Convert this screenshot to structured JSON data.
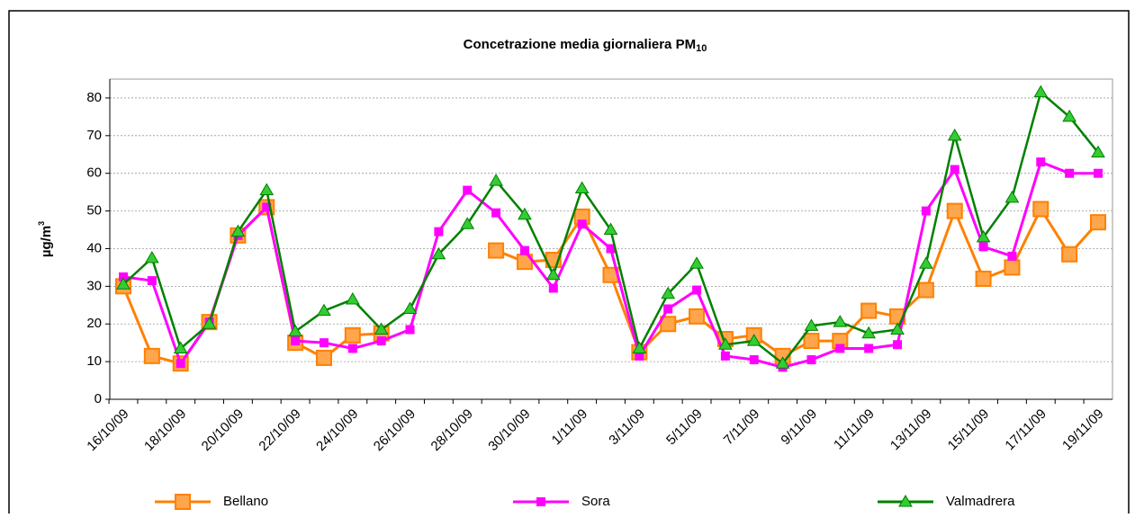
{
  "chart_data": {
    "type": "line",
    "title": "Concetrazione media giornaliera PM",
    "title_sub": "10",
    "ylabel": "µg/m",
    "ylabel_sup": "3",
    "categories": [
      "16/10/09",
      null,
      "18/10/09",
      null,
      "20/10/09",
      null,
      "22/10/09",
      null,
      "24/10/09",
      null,
      "26/10/09",
      null,
      "28/10/09",
      null,
      "30/10/09",
      null,
      "1/11/09",
      null,
      "3/11/09",
      null,
      "5/11/09",
      null,
      "7/11/09",
      null,
      "9/11/09",
      null,
      "11/11/09",
      null,
      "13/11/09",
      null,
      "15/11/09",
      null,
      "17/11/09",
      null,
      "19/11/09"
    ],
    "series": [
      {
        "name": "Bellano",
        "color": "#ff8000",
        "marker": "square",
        "values": [
          30,
          11.5,
          9.5,
          20.5,
          43.5,
          51,
          15,
          11,
          17,
          17.5,
          null,
          null,
          null,
          39.5,
          36.5,
          37,
          48.5,
          33,
          12.5,
          20,
          22,
          16,
          17,
          11.5,
          15.5,
          15.5,
          23.5,
          22,
          29,
          50,
          32,
          35,
          50.5,
          38.5,
          47
        ]
      },
      {
        "name": "Sora",
        "color": "#ff00ff",
        "marker": "square-small",
        "values": [
          32.5,
          31.5,
          9.5,
          20.5,
          43.5,
          51,
          15.5,
          15,
          13.5,
          15.5,
          18.5,
          44.5,
          55.5,
          49.5,
          39.5,
          29.5,
          46.5,
          40,
          11.5,
          24,
          29,
          11.5,
          10.5,
          8.5,
          10.5,
          13.5,
          13.5,
          14.5,
          50,
          61,
          40.5,
          38,
          63,
          60,
          60
        ]
      },
      {
        "name": "Valmadrera",
        "color": "#008000",
        "marker": "triangle",
        "values": [
          30.5,
          37.5,
          13.5,
          20,
          44.5,
          55.5,
          18,
          23.5,
          26.5,
          18.5,
          24,
          38.5,
          46.5,
          58,
          49,
          33,
          56,
          45,
          13.5,
          28,
          36,
          14.5,
          15.5,
          9.5,
          19.5,
          20.5,
          17.5,
          18.5,
          36,
          70,
          43,
          53.5,
          81.5,
          75,
          65.5
        ]
      }
    ],
    "ylim": [
      0,
      85
    ],
    "yticks": [
      0,
      10,
      20,
      30,
      40,
      50,
      60,
      70,
      80
    ],
    "grid": true,
    "legend": "bottom"
  }
}
